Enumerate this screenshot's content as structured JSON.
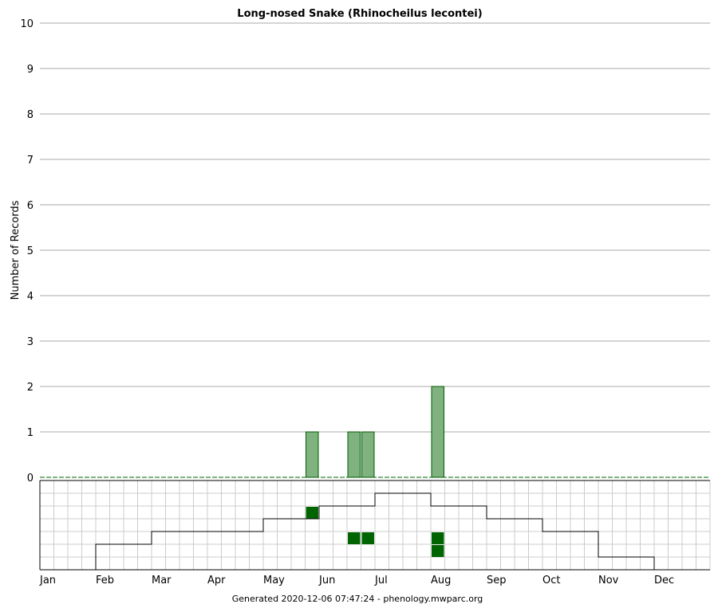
{
  "chart_data": {
    "type": "bar",
    "title": "Long-nosed Snake (Rhinocheilus lecontei)",
    "ylabel": "Number of Records",
    "xlabel": "",
    "ylim": [
      0,
      10
    ],
    "yticks": [
      "0",
      "1",
      "2",
      "3",
      "4",
      "5",
      "6",
      "7",
      "8",
      "9",
      "10"
    ],
    "months": [
      "Jan",
      "Feb",
      "Mar",
      "Apr",
      "May",
      "Jun",
      "Jul",
      "Aug",
      "Sep",
      "Oct",
      "Nov",
      "Dec"
    ],
    "bins_per_month": 4,
    "series": [
      {
        "bins": [
          "May week 4",
          "Jun week 3",
          "Jun week 4",
          "Jul week 4"
        ],
        "bin_index": [
          19,
          22,
          23,
          28
        ],
        "values": [
          1,
          1,
          1,
          2
        ]
      }
    ],
    "grid": true,
    "colors": {
      "bar": "#7fb27f",
      "bar_edge": "#005c00",
      "record": "#006400",
      "grid": "#aaaaaa",
      "lower_grid": "#cccccc"
    },
    "record_cells": [
      {
        "bin_index": 19,
        "row": 2
      },
      {
        "bin_index": 22,
        "row": 4
      },
      {
        "bin_index": 23,
        "row": 4
      },
      {
        "bin_index": 28,
        "row": 4
      },
      {
        "bin_index": 28,
        "row": 5
      }
    ],
    "daylight_rows_filled": [
      0,
      2,
      3,
      3,
      4,
      5,
      6,
      5,
      4,
      3,
      1,
      0
    ],
    "footer": "Generated 2020-12-06 07:47:24 - phenology.mwparc.org"
  }
}
